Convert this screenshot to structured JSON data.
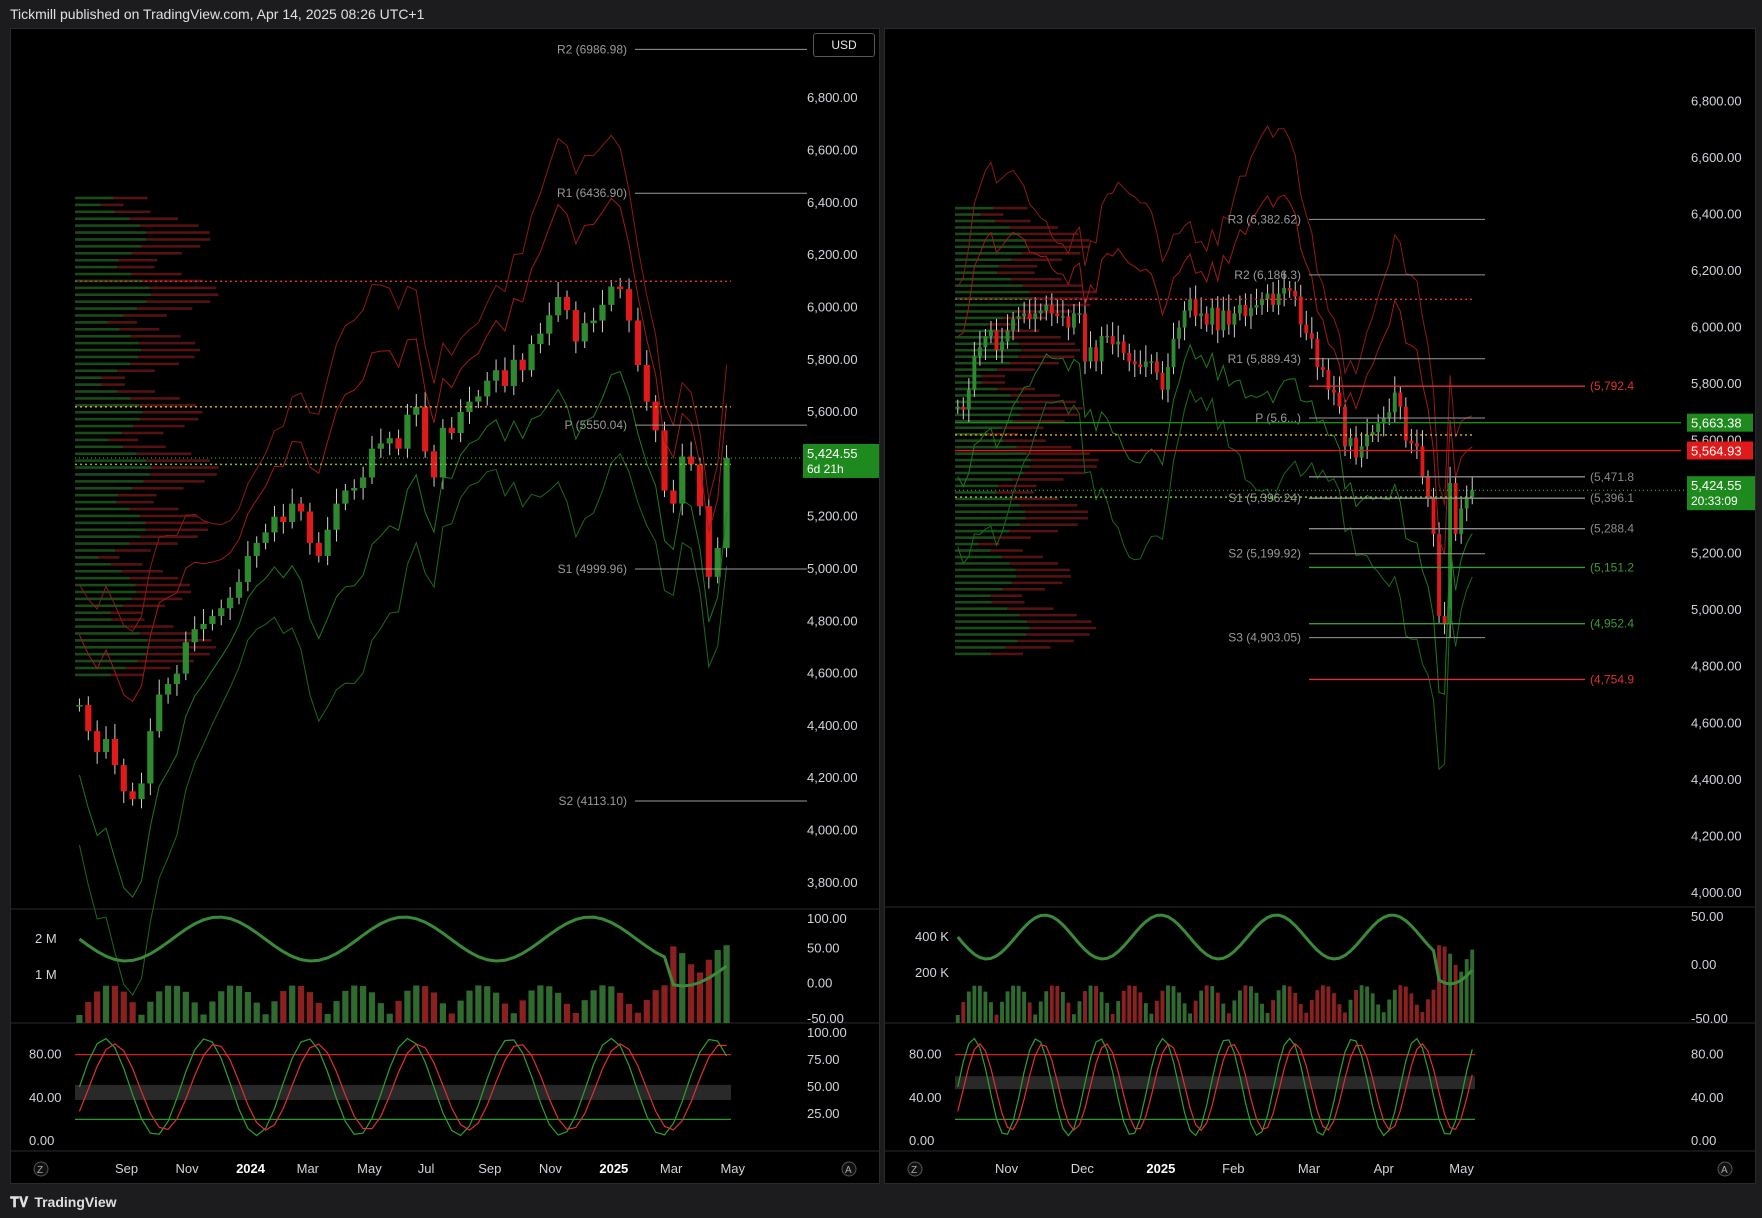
{
  "header": {
    "published_text": "Tickmill published on TradingView.com, Apr 14, 2025 08:26 UTC+1"
  },
  "footer": {
    "brand": "TradingView"
  },
  "colors": {
    "up": "#2f8a2f",
    "down": "#e01a1a",
    "background": "#000000"
  },
  "left": {
    "currency_button": "USD",
    "price_axis": [
      "6,800.00",
      "6,600.00",
      "6,400.00",
      "6,200.00",
      "6,000.00",
      "5,800.00",
      "5,600.00",
      "5,400.00",
      "5,200.00",
      "5,000.00",
      "4,800.00",
      "4,600.00",
      "4,400.00",
      "4,200.00",
      "4,000.00",
      "3,800.00"
    ],
    "pivots": [
      {
        "label": "R2 (6986.98)",
        "value": 6986.98
      },
      {
        "label": "R1 (6436.90)",
        "value": 6436.9
      },
      {
        "label": "P (5550.04)",
        "value": 5550.04
      },
      {
        "label": "S1 (4999.96)",
        "value": 4999.96
      },
      {
        "label": "S2 (4113.10)",
        "value": 4113.1
      }
    ],
    "price_tag": {
      "price": "5,424.55",
      "countdown": "6d 21h"
    },
    "volume_axis": [
      "2 M",
      "1 M"
    ],
    "osc_axis": [
      "100.00",
      "50.00",
      "0.00",
      "-50.00"
    ],
    "stoch_axis_left": [
      "80.00",
      "40.00",
      "0.00"
    ],
    "stoch_axis_right": [
      "100.00",
      "75.00",
      "50.00",
      "25.00"
    ],
    "time_axis": [
      "Sep",
      "Nov",
      "2024",
      "Mar",
      "May",
      "Jul",
      "Sep",
      "Nov",
      "2025",
      "Mar",
      "May"
    ],
    "bottom_buttons": [
      "Z",
      "A"
    ],
    "chart_data": {
      "type": "candlestick",
      "interval": "weekly",
      "range": [
        "2023-08",
        "2025-04"
      ],
      "close_approx": [
        4480,
        4380,
        4300,
        4350,
        4250,
        4150,
        4120,
        4180,
        4380,
        4520,
        4560,
        4600,
        4720,
        4770,
        4790,
        4820,
        4850,
        4890,
        4950,
        5050,
        5100,
        5140,
        5200,
        5180,
        5250,
        5220,
        5100,
        5050,
        5150,
        5250,
        5300,
        5310,
        5350,
        5460,
        5480,
        5500,
        5460,
        5590,
        5620,
        5450,
        5350,
        5540,
        5520,
        5600,
        5640,
        5660,
        5720,
        5760,
        5700,
        5800,
        5760,
        5860,
        5900,
        5970,
        6040,
        5990,
        5870,
        5940,
        5950,
        6010,
        6080,
        6070,
        5950,
        5780,
        5640,
        5530,
        5300,
        5250,
        5430,
        5400,
        5240,
        4970,
        5080,
        5424.55
      ],
      "ylim": [
        3700,
        6950
      ]
    }
  },
  "right": {
    "price_axis": [
      "6,800.00",
      "6,600.00",
      "6,400.00",
      "6,200.00",
      "6,000.00",
      "5,800.00",
      "5,600.00",
      "5,400.00",
      "5,200.00",
      "5,000.00",
      "4,800.00",
      "4,600.00",
      "4,400.00",
      "4,200.00",
      "4,000.00"
    ],
    "pivots": [
      {
        "label": "R3 (6,382.62)",
        "value": 6382.62
      },
      {
        "label": "R2 (6,186.3)",
        "value": 6186.3
      },
      {
        "label": "R1 (5,889.43)",
        "value": 5889.43
      },
      {
        "label": "P (5,6...)",
        "value": 5680
      },
      {
        "label": "S1 (5,396.24)",
        "value": 5396.24
      },
      {
        "label": "S2 (5,199.92)",
        "value": 5199.92
      },
      {
        "label": "S3 (4,903.05)",
        "value": 4903.05
      }
    ],
    "level_labels": [
      {
        "label": "(5,792.4",
        "value": 5792.4,
        "color": "#e03030"
      },
      {
        "label": "(5,471.8",
        "value": 5471.8,
        "color": "#8a8a8a"
      },
      {
        "label": "(5,396.1",
        "value": 5396.1,
        "color": "#8a8a8a"
      },
      {
        "label": "(5,288.4",
        "value": 5288.4,
        "color": "#8a8a8a"
      },
      {
        "label": "(5,151.2",
        "value": 5151.2,
        "color": "#3a9a3a"
      },
      {
        "label": "(4,952.4",
        "value": 4952.4,
        "color": "#3a9a3a"
      },
      {
        "label": "(4,754.9",
        "value": 4754.9,
        "color": "#e03030"
      }
    ],
    "tags": [
      {
        "text": "5,663.38",
        "value": 5663.38,
        "color": "#1e8a1e"
      },
      {
        "text": "5,564.93",
        "value": 5564.93,
        "color": "#e01a1a"
      }
    ],
    "price_tag": {
      "price": "5,424.55",
      "countdown": "20:33:09"
    },
    "volume_axis": [
      "400 K",
      "200 K"
    ],
    "osc_axis": [
      "50.00",
      "0.00",
      "-50.00"
    ],
    "stoch_axis": [
      "80.00",
      "40.00",
      "0.00"
    ],
    "time_axis": [
      "Nov",
      "Dec",
      "2025",
      "Feb",
      "Mar",
      "Apr",
      "May"
    ],
    "bottom_buttons": [
      "Z",
      "A"
    ],
    "chart_data": {
      "type": "candlestick",
      "interval": "daily",
      "range": [
        "2024-11",
        "2025-04"
      ],
      "close_approx": [
        5720,
        5710,
        5780,
        5900,
        5930,
        5970,
        5990,
        5920,
        5950,
        5990,
        6030,
        6040,
        6050,
        6030,
        6050,
        6060,
        6080,
        6050,
        6040,
        6040,
        6000,
        6050,
        6050,
        5880,
        5930,
        5880,
        5970,
        5970,
        5940,
        5950,
        5910,
        5880,
        5870,
        5860,
        5880,
        5880,
        5840,
        5780,
        5860,
        5960,
        6000,
        6060,
        6100,
        6040,
        6050,
        6010,
        6070,
        5990,
        6060,
        6010,
        6050,
        6080,
        6040,
        6070,
        6080,
        6100,
        6120,
        6080,
        6120,
        6140,
        6130,
        6110,
        6010,
        5980,
        5960,
        5860,
        5850,
        5780,
        5770,
        5720,
        5580,
        5610,
        5540,
        5580,
        5620,
        5630,
        5660,
        5680,
        5700,
        5770,
        5720,
        5600,
        5590,
        5580,
        5470,
        5400,
        5270,
        4980,
        4950,
        5450,
        5270,
        5360,
        5400,
        5424.55
      ],
      "ylim": [
        3950,
        6950
      ]
    }
  }
}
